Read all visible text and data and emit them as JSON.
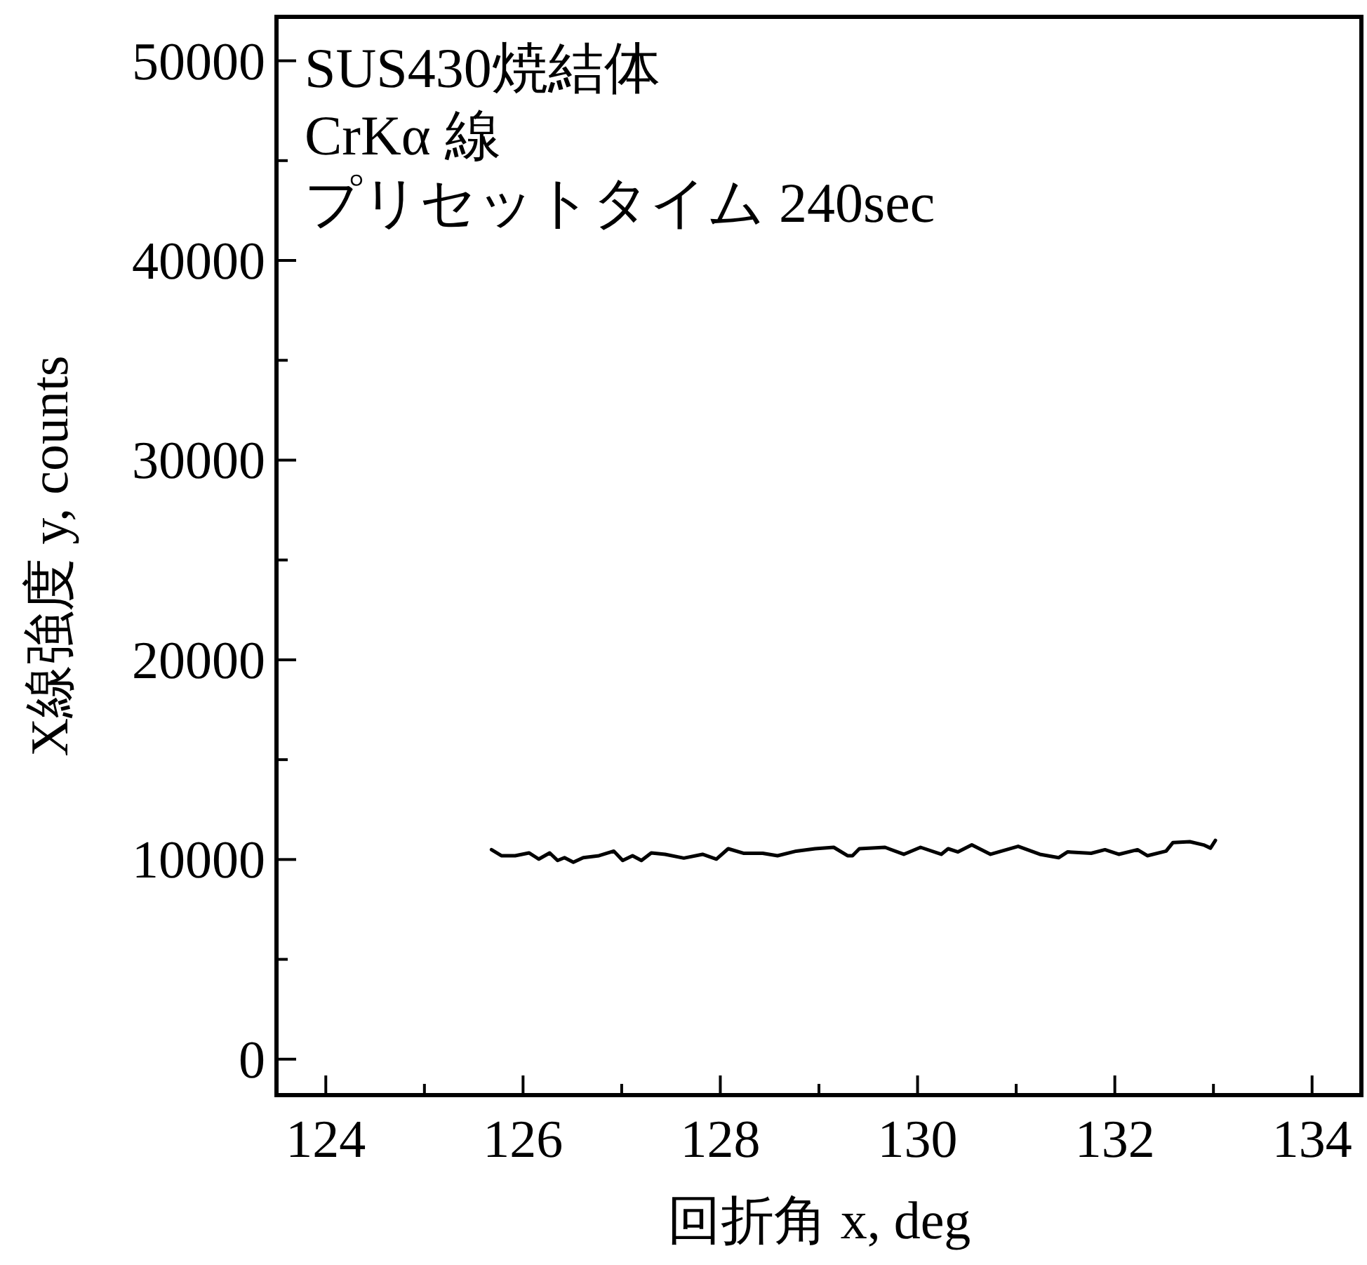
{
  "chart_data": {
    "type": "line",
    "xlabel": "回折角 x, deg",
    "ylabel": "X線強度 y, counts",
    "annotations": [
      "SUS430焼結体",
      "CrKα 線",
      "プリセットタイム 240sec"
    ],
    "xlim": [
      123.5,
      134.5
    ],
    "ylim": [
      -1800,
      52200
    ],
    "xticks": [
      124,
      {
        "value": 125,
        "label": null
      },
      126,
      {
        "value": 127,
        "label": null
      },
      128,
      {
        "value": 129,
        "label": null
      },
      130,
      {
        "value": 131,
        "label": null
      },
      132,
      {
        "value": 133,
        "label": null
      },
      134
    ],
    "yticks": [
      0,
      {
        "value": 5000,
        "label": null
      },
      10000,
      {
        "value": 15000,
        "label": null
      },
      20000,
      {
        "value": 25000,
        "label": null
      },
      30000,
      {
        "value": 35000,
        "label": null
      },
      40000,
      {
        "value": 45000,
        "label": null
      },
      50000
    ],
    "grid": false,
    "series": [
      {
        "color": "#000000",
        "x": [
          125.68,
          125.78,
          125.92,
          126.06,
          126.16,
          126.27,
          126.35,
          126.42,
          126.51,
          126.61,
          126.77,
          126.92,
          127.01,
          127.11,
          127.2,
          127.3,
          127.44,
          127.63,
          127.82,
          127.96,
          128.08,
          128.24,
          128.43,
          128.58,
          128.77,
          128.96,
          129.15,
          129.29,
          129.34,
          129.41,
          129.67,
          129.86,
          130.03,
          130.24,
          130.31,
          130.41,
          130.55,
          130.74,
          131.02,
          131.24,
          131.43,
          131.52,
          131.76,
          131.9,
          132.04,
          132.23,
          132.33,
          132.52,
          132.59,
          132.76,
          132.9,
          132.97,
          133.02
        ],
        "values": [
          10490,
          10190,
          10190,
          10330,
          10020,
          10330,
          9950,
          10090,
          9860,
          10090,
          10190,
          10420,
          9950,
          10190,
          9950,
          10330,
          10260,
          10070,
          10260,
          10020,
          10540,
          10310,
          10310,
          10190,
          10420,
          10540,
          10610,
          10190,
          10190,
          10540,
          10610,
          10260,
          10610,
          10260,
          10540,
          10380,
          10730,
          10260,
          10660,
          10260,
          10090,
          10380,
          10310,
          10490,
          10260,
          10490,
          10190,
          10420,
          10850,
          10890,
          10730,
          10570,
          10960
        ]
      }
    ]
  }
}
